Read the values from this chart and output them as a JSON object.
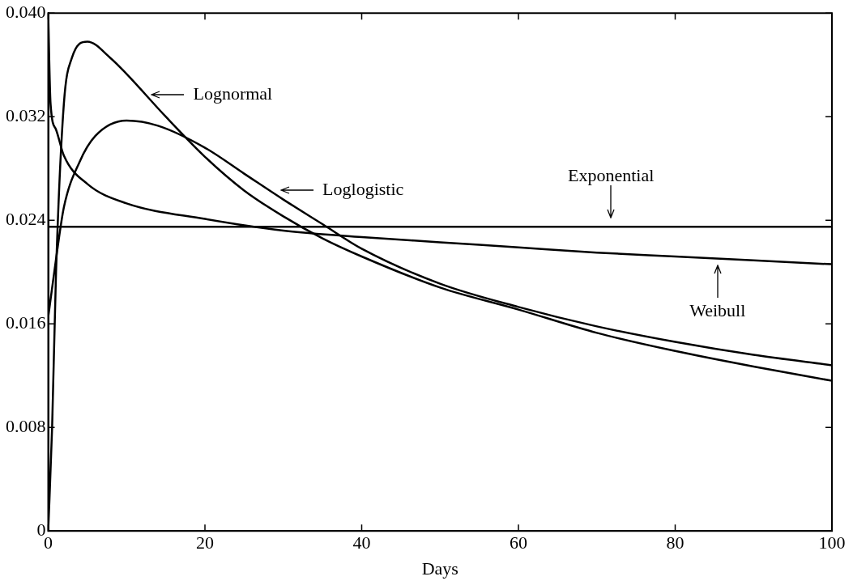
{
  "chart_data": {
    "type": "line",
    "xlabel": "Days",
    "xlim": [
      0,
      100
    ],
    "xticks": [
      0,
      20,
      40,
      60,
      80,
      100
    ],
    "ylim": [
      0,
      0.04
    ],
    "yticks": [
      0,
      0.008,
      0.016,
      0.024,
      0.032,
      {
        "value": 0.04,
        "label": "0.040"
      }
    ],
    "grid": false,
    "legend": false,
    "marker": "none",
    "line_style": "solid",
    "series": [
      {
        "color": "#000000",
        "x": [
          0,
          0.5,
          1,
          2,
          3,
          5,
          8,
          10,
          15,
          20,
          25,
          30,
          35,
          40,
          50,
          60,
          70,
          80,
          90,
          100
        ],
        "values": [
          0,
          0.008,
          0.02,
          0.033,
          0.0365,
          0.0378,
          0.0365,
          0.0353,
          0.032,
          0.0289,
          0.0263,
          0.0243,
          0.0226,
          0.0212,
          0.0188,
          0.0171,
          0.0153,
          0.0139,
          0.0127,
          0.0116
        ]
      },
      {
        "color": "#000000",
        "x": [
          0,
          1,
          2,
          4,
          6,
          10,
          14,
          20,
          25,
          30,
          35,
          40,
          50,
          60,
          70,
          80,
          90,
          100
        ],
        "values": [
          0.0165,
          0.021,
          0.025,
          0.0285,
          0.0305,
          0.0317,
          0.0313,
          0.0296,
          0.0276,
          0.0256,
          0.0237,
          0.0218,
          0.0191,
          0.0173,
          0.0158,
          0.0146,
          0.0136,
          0.0128
        ]
      },
      {
        "color": "#000000",
        "x": [
          0,
          100
        ],
        "values": [
          0.0235,
          0.0235
        ]
      },
      {
        "color": "#000000",
        "x": [
          0,
          0.3,
          1,
          2,
          5,
          10,
          20,
          30,
          40,
          50,
          60,
          70,
          80,
          90,
          100
        ],
        "values": [
          0.04,
          0.033,
          0.031,
          0.029,
          0.0268,
          0.0253,
          0.0241,
          0.0232,
          0.0227,
          0.0223,
          0.0219,
          0.0215,
          0.0212,
          0.0209,
          0.0206
        ]
      }
    ],
    "annotations": [
      {
        "text": "Lognormal",
        "x": 12.5,
        "y": 0.0337
      },
      {
        "text": "Loglogistic",
        "x": 29,
        "y": 0.0263
      },
      {
        "text": "Exponential",
        "x": 71.8,
        "y": 0.0238
      },
      {
        "text": "Weibull",
        "x": 85.4,
        "y": 0.0209
      }
    ]
  }
}
